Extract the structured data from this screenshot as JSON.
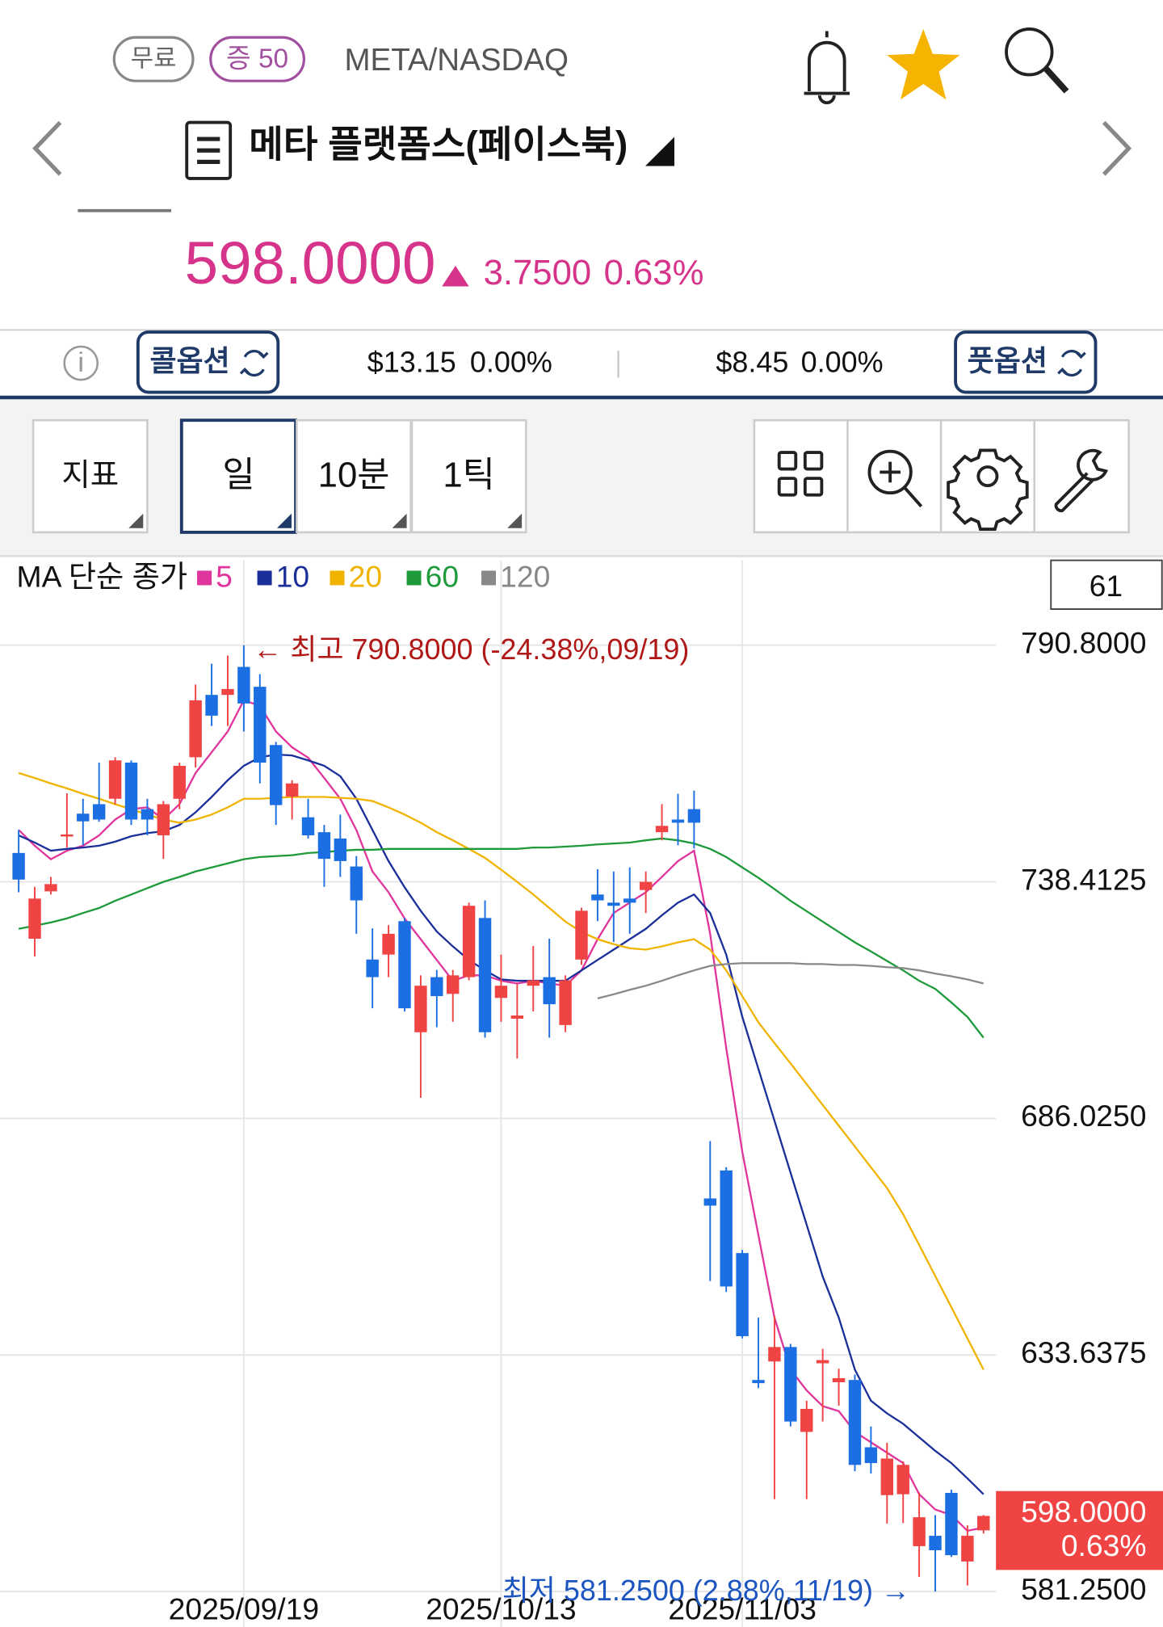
{
  "header": {
    "badges": [
      "무료",
      "증 50"
    ],
    "symbol": "META/NASDAQ",
    "name": "메타 플랫폼스(페이스북)",
    "price": "598.0000",
    "change": "3.7500",
    "change_pct": "0.63%"
  },
  "options": {
    "call_label": "콜옵션",
    "call_price": "$13.15",
    "call_pct": "0.00%",
    "put_price": "$8.45",
    "put_pct": "0.00%",
    "put_label": "풋옵션"
  },
  "toolbar": {
    "buttons": [
      "지표",
      "일",
      "10분",
      "1틱"
    ]
  },
  "chart_data": {
    "type": "candlestick",
    "legend_title": "MA 단순 종가",
    "bar_count": "61",
    "high_label": "← 최고 790.8000 (-24.38%,09/19)",
    "low_label": "최저 581.2500 (2.88%,11/19) →",
    "last_price": "598.0000",
    "last_change_pct": "0.63%",
    "up_color": "#f04343",
    "down_color": "#1c6fe3",
    "grid": true,
    "categories": [
      null,
      null,
      null,
      null,
      null,
      null,
      null,
      null,
      null,
      null,
      null,
      null,
      null,
      null,
      "2025/09/19",
      null,
      null,
      null,
      null,
      null,
      null,
      null,
      null,
      null,
      null,
      null,
      null,
      null,
      null,
      null,
      "2025/10/13",
      null,
      null,
      null,
      null,
      null,
      null,
      null,
      null,
      null,
      null,
      null,
      null,
      null,
      null,
      "2025/11/03",
      null,
      null,
      null,
      null,
      null,
      null,
      null,
      null,
      null,
      null,
      null,
      null,
      null,
      null,
      null
    ],
    "open": [
      744.8,
      725.8,
      736.3,
      748.6,
      753.5,
      755.6,
      756.8,
      764.8,
      754.5,
      748.7,
      756.8,
      766.0,
      779.8,
      779.8,
      786.0,
      781.6,
      768.7,
      757.3,
      752.7,
      749.4,
      748.0,
      741.8,
      721.2,
      722.3,
      729.7,
      705.1,
      717.3,
      713.6,
      717.3,
      730.4,
      712.7,
      708.1,
      715.4,
      717.3,
      706.7,
      721.2,
      735.6,
      733.8,
      734.7,
      736.6,
      749.4,
      752.2,
      754.5,
      668.3,
      674.5,
      656.2,
      628.1,
      632.2,
      635.4,
      616.6,
      631.8,
      627.6,
      628.1,
      613.2,
      602.6,
      602.8,
      591.3,
      593.6,
      603.1,
      587.9,
      594.8
    ],
    "high": [
      749.9,
      737.3,
      739.5,
      758.0,
      756.8,
      764.8,
      766.0,
      765.3,
      756.8,
      756.3,
      764.8,
      782.1,
      786.7,
      788.5,
      790.8,
      784.4,
      769.4,
      760.9,
      756.8,
      751.0,
      753.3,
      744.1,
      728.1,
      728.8,
      730.4,
      717.7,
      718.9,
      718.9,
      733.8,
      734.3,
      722.3,
      715.8,
      724.2,
      725.8,
      717.7,
      732.7,
      741.2,
      740.7,
      741.6,
      740.7,
      755.6,
      757.9,
      758.6,
      681.0,
      675.2,
      656.9,
      641.9,
      642.3,
      636.1,
      623.5,
      635.0,
      630.6,
      629.3,
      617.8,
      614.2,
      610.1,
      603.2,
      598.2,
      603.8,
      595.9,
      598.2
    ],
    "low": [
      736.1,
      721.9,
      735.6,
      746.0,
      746.5,
      751.7,
      755.6,
      751.0,
      748.7,
      743.5,
      754.5,
      763.7,
      772.9,
      772.9,
      771.7,
      760.2,
      751.0,
      752.2,
      748.0,
      737.3,
      739.5,
      726.9,
      710.4,
      717.3,
      709.7,
      690.6,
      706.2,
      707.4,
      716.6,
      703.9,
      707.4,
      699.3,
      709.7,
      703.9,
      705.1,
      720.0,
      729.7,
      725.1,
      726.9,
      731.5,
      747.6,
      746.5,
      745.8,
      650.0,
      647.6,
      637.3,
      626.3,
      601.7,
      617.8,
      601.7,
      618.9,
      622.4,
      607.9,
      607.4,
      596.3,
      596.4,
      584.5,
      581.25,
      588.9,
      582.6,
      594.1
    ],
    "close": [
      738.9,
      734.7,
      737.9,
      748.9,
      751.8,
      752.2,
      765.3,
      752.2,
      752.2,
      755.6,
      764.1,
      778.6,
      775.2,
      781.1,
      777.9,
      764.8,
      755.4,
      760.2,
      748.7,
      743.5,
      743.0,
      734.3,
      717.3,
      726.9,
      710.4,
      715.4,
      713.1,
      717.7,
      733.1,
      705.1,
      715.4,
      708.8,
      716.6,
      711.3,
      716.6,
      732.0,
      734.3,
      733.1,
      733.8,
      738.4,
      750.8,
      751.5,
      751.5,
      666.7,
      648.8,
      637.8,
      627.4,
      635.4,
      618.9,
      621.7,
      632.5,
      628.5,
      609.3,
      609.7,
      610.7,
      609.3,
      597.7,
      590.4,
      589.3,
      593.6,
      598.0
    ],
    "series": [
      {
        "name": "5",
        "color": "#e0359c",
        "values": [
          749.9,
          746.4,
          743.4,
          745.3,
          746.4,
          748.7,
          752.2,
          754.5,
          754.9,
          752.2,
          755.6,
          762.5,
          767.1,
          771.7,
          778.6,
          777.4,
          771.7,
          768.2,
          765.9,
          761.4,
          756.8,
          749.9,
          740.7,
          736.1,
          730.3,
          725.7,
          721.1,
          716.5,
          717.7,
          717.7,
          716.5,
          715.9,
          716.5,
          715.9,
          715.4,
          718.8,
          725.7,
          731.5,
          733.8,
          736.1,
          739.5,
          743.0,
          745.3,
          726.9,
          701.6,
          678.6,
          660.2,
          641.9,
          630.4,
          625.8,
          622.3,
          621.2,
          616.6,
          614.3,
          612.0,
          609.7,
          602.8,
          599.4,
          598.2,
          594.7,
          595.4
        ]
      },
      {
        "name": "10",
        "color": "#1a2f99",
        "values": [
          748.7,
          747.1,
          745.3,
          745.7,
          746.0,
          746.4,
          747.3,
          748.5,
          749.2,
          749.6,
          751.0,
          753.8,
          757.2,
          760.9,
          764.1,
          766.0,
          766.6,
          766.4,
          765.3,
          764.1,
          761.8,
          756.8,
          749.9,
          743.0,
          737.2,
          732.0,
          727.4,
          724.1,
          721.1,
          718.8,
          716.8,
          716.5,
          716.5,
          716.5,
          716.5,
          718.8,
          721.1,
          723.4,
          725.7,
          728.0,
          731.0,
          733.8,
          735.6,
          731.5,
          722.3,
          708.5,
          697.0,
          685.5,
          674.0,
          662.5,
          651.0,
          641.9,
          630.4,
          623.5,
          620.7,
          618.4,
          615.4,
          612.4,
          609.7,
          606.3,
          602.8
        ]
      },
      {
        "name": "20",
        "color": "#f0b400",
        "values": [
          762.5,
          761.4,
          760.2,
          759.1,
          757.9,
          756.8,
          755.6,
          754.5,
          753.3,
          752.2,
          751.5,
          752.2,
          753.3,
          754.9,
          756.8,
          756.8,
          757.0,
          757.2,
          757.2,
          757.2,
          757.0,
          756.8,
          756.3,
          754.9,
          753.3,
          751.5,
          749.4,
          747.6,
          745.7,
          743.7,
          741.1,
          738.4,
          735.6,
          732.6,
          729.6,
          727.3,
          725.7,
          724.6,
          723.7,
          723.4,
          724.1,
          725.0,
          725.7,
          723.4,
          718.8,
          713.1,
          707.3,
          702.7,
          698.2,
          693.6,
          689.0,
          684.4,
          679.8,
          675.2,
          670.6,
          664.8,
          658.0,
          651.1,
          644.2,
          637.3,
          630.4
        ]
      },
      {
        "name": "60",
        "color": "#1f9a3a",
        "values": [
          728.0,
          728.7,
          729.4,
          730.3,
          731.5,
          732.6,
          734.2,
          735.6,
          737.0,
          738.4,
          739.5,
          740.7,
          741.6,
          742.5,
          743.4,
          743.9,
          744.1,
          744.3,
          744.8,
          745.0,
          745.3,
          745.5,
          745.5,
          745.7,
          745.7,
          745.7,
          745.7,
          745.7,
          745.7,
          745.7,
          745.7,
          745.7,
          746.0,
          746.0,
          746.2,
          746.4,
          746.7,
          746.9,
          747.1,
          747.6,
          748.0,
          747.6,
          746.9,
          745.7,
          743.9,
          741.6,
          739.3,
          736.8,
          734.2,
          731.9,
          729.6,
          727.3,
          725.0,
          723.0,
          720.9,
          718.8,
          716.5,
          714.7,
          711.7,
          708.5,
          703.9
        ]
      },
      {
        "name": "120",
        "color": "#888888",
        "values": [
          null,
          null,
          null,
          null,
          null,
          null,
          null,
          null,
          null,
          null,
          null,
          null,
          null,
          null,
          null,
          null,
          null,
          null,
          null,
          null,
          null,
          null,
          null,
          null,
          null,
          null,
          null,
          null,
          null,
          null,
          null,
          null,
          null,
          null,
          null,
          null,
          712.6,
          713.5,
          714.5,
          715.4,
          716.5,
          717.7,
          718.8,
          719.8,
          720.2,
          720.4,
          720.4,
          720.4,
          720.4,
          720.2,
          720.2,
          720.0,
          720.0,
          719.8,
          719.5,
          719.3,
          718.8,
          718.1,
          717.5,
          716.8,
          715.9
        ]
      }
    ],
    "ylim": [
      573.4,
      809.6
    ],
    "yticks": [
      {
        "value": 790.8,
        "label": "790.8000"
      },
      {
        "value": 738.4125,
        "label": "738.4125"
      },
      {
        "value": 686.025,
        "label": "686.0250"
      },
      {
        "value": 633.6375,
        "label": "633.6375"
      },
      {
        "value": 581.25,
        "label": "581.2500"
      }
    ]
  }
}
